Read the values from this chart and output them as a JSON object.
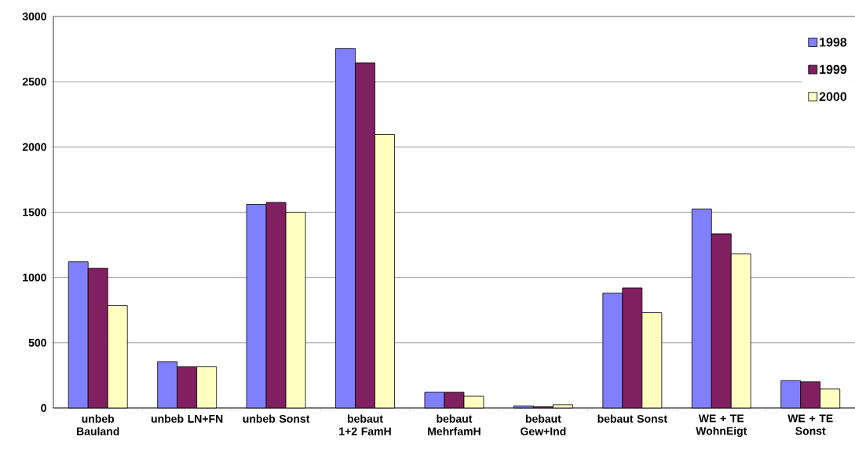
{
  "chart_data": {
    "type": "bar",
    "categories": [
      "unbeb Bauland",
      "unbeb LN+FN",
      "unbeb Sonst",
      "bebaut 1+2 FamH",
      "bebaut MehrfamH",
      "bebaut Gew+Ind",
      "bebaut Sonst",
      "WE + TE WohnEigt",
      "WE + TE Sonst"
    ],
    "series": [
      {
        "name": "1998",
        "color": "#8080ff",
        "values": [
          1120,
          355,
          1560,
          2755,
          120,
          15,
          880,
          1525,
          210
        ]
      },
      {
        "name": "1999",
        "color": "#802060",
        "values": [
          1070,
          315,
          1575,
          2645,
          120,
          10,
          920,
          1335,
          200
        ]
      },
      {
        "name": "2000",
        "color": "#ffffc0",
        "values": [
          785,
          315,
          1500,
          2095,
          90,
          25,
          730,
          1180,
          145
        ]
      }
    ],
    "ylim": [
      0,
      3000
    ],
    "yticks": [
      0,
      500,
      1000,
      1500,
      2000,
      2500,
      3000
    ],
    "grid": "y",
    "legend": "top right"
  }
}
